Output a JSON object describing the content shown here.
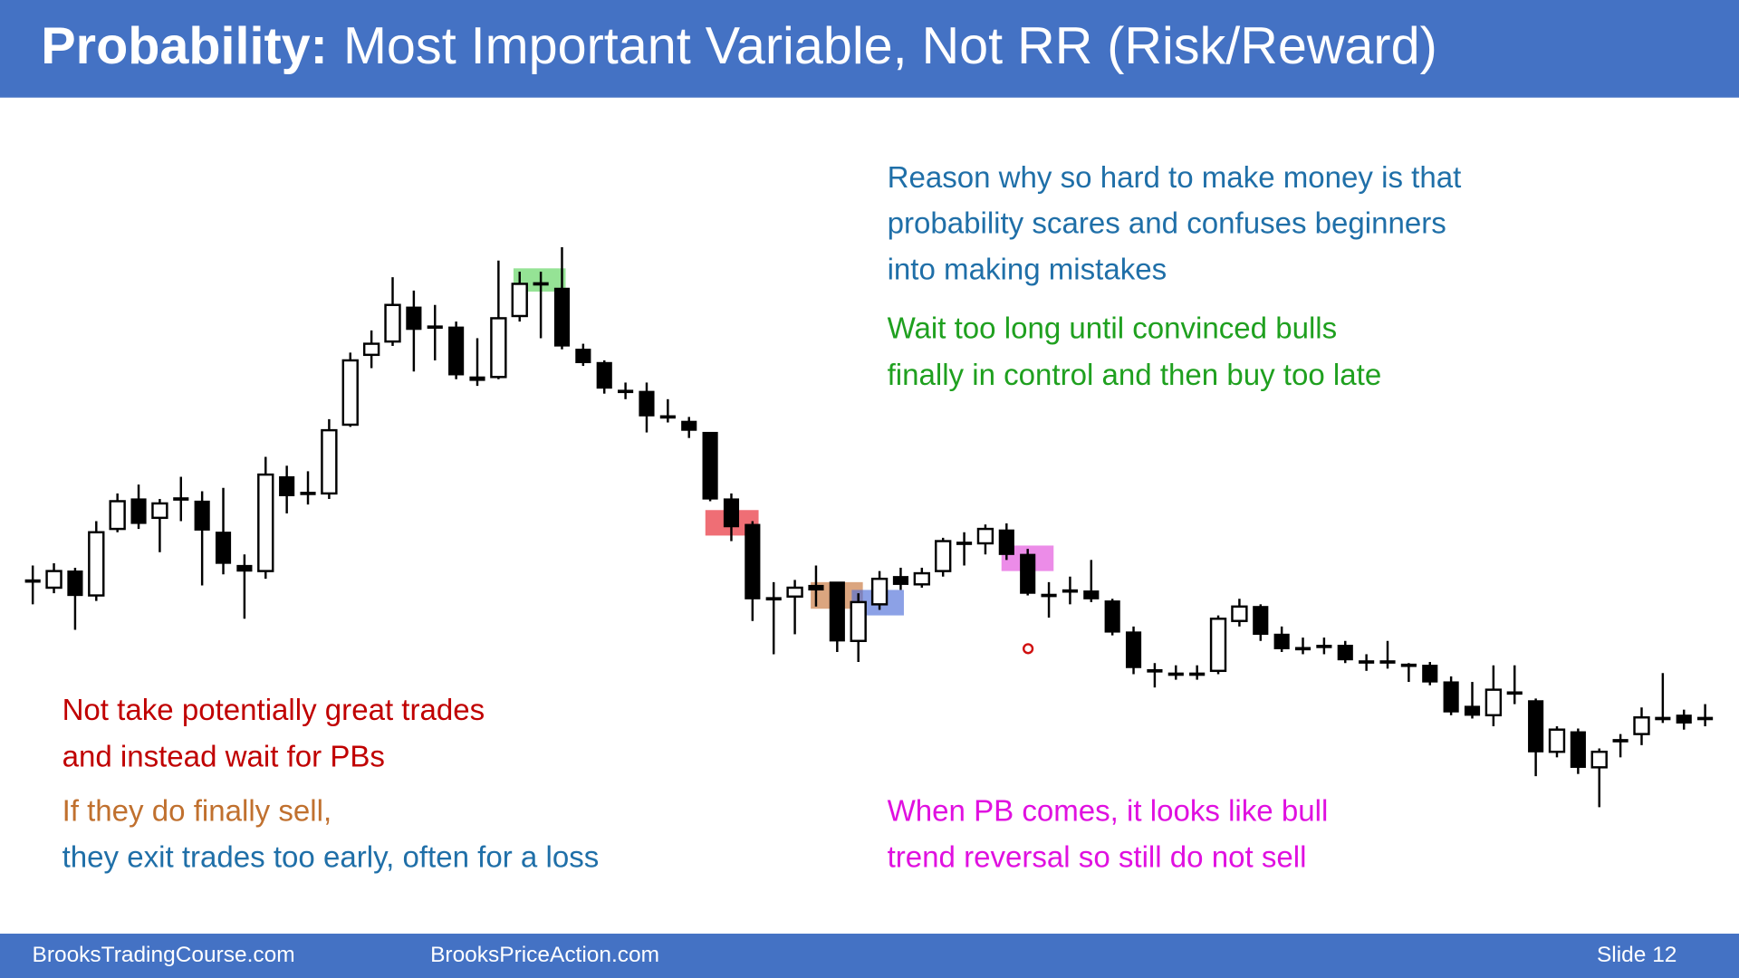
{
  "header": {
    "title_bold": "Probability:",
    "title_rest": "Most Important Variable, Not RR (Risk/Reward)"
  },
  "notes": {
    "reason": [
      "Reason why so hard to make money is that",
      "probability scares and confuses beginners",
      "into making mistakes"
    ],
    "wait": [
      "Wait too long until convinced bulls",
      "finally in control and then buy too late"
    ],
    "not_take": [
      "Not take potentially great trades",
      "and instead wait for PBs"
    ],
    "sell": "If they do finally sell,",
    "exit": "they exit trades too early, often for a loss",
    "pb": [
      "When PB comes, it looks like bull",
      "trend reversal so still do not sell"
    ]
  },
  "footer": {
    "left": "BrooksTradingCourse.com",
    "middle": "BrooksPriceAction.com",
    "slide": "Slide 12"
  },
  "chart_data": {
    "type": "candlestick",
    "ylim": [
      50,
      600
    ],
    "bull_color": "#ffffff",
    "bear_color": "#000000",
    "open": [
      276,
      270,
      285,
      263,
      323,
      350,
      333,
      350,
      348,
      320,
      290,
      285,
      370,
      355,
      355,
      417,
      480,
      492,
      523,
      505,
      505,
      460,
      460,
      515,
      544,
      540,
      485,
      473,
      447,
      447,
      424,
      420,
      410,
      350,
      327,
      260,
      262,
      272,
      275,
      222,
      255,
      280,
      273,
      285,
      310,
      310,
      322,
      300,
      263,
      267,
      267,
      258,
      230,
      195,
      192,
      192,
      195,
      240,
      253,
      228,
      215,
      217,
      218,
      203,
      203,
      200,
      200,
      185,
      163,
      155,
      175,
      168,
      122,
      140,
      108,
      132,
      138,
      152,
      155,
      152
    ],
    "high": [
      290,
      292,
      288,
      330,
      355,
      363,
      350,
      370,
      357,
      360,
      300,
      388,
      380,
      375,
      422,
      482,
      502,
      550,
      538,
      525,
      510,
      495,
      565,
      555,
      555,
      577,
      490,
      475,
      455,
      455,
      440,
      424,
      410,
      355,
      330,
      275,
      277,
      290,
      275,
      265,
      285,
      288,
      288,
      315,
      320,
      327,
      328,
      305,
      275,
      280,
      295,
      260,
      235,
      202,
      200,
      200,
      245,
      260,
      255,
      235,
      225,
      225,
      222,
      210,
      222,
      202,
      203,
      190,
      185,
      200,
      200,
      170,
      145,
      143,
      125,
      138,
      162,
      193,
      160,
      165
    ],
    "low": [
      255,
      265,
      232,
      258,
      320,
      323,
      302,
      330,
      272,
      282,
      242,
      278,
      337,
      345,
      350,
      415,
      468,
      488,
      465,
      475,
      458,
      452,
      458,
      510,
      495,
      485,
      470,
      445,
      440,
      410,
      419,
      405,
      348,
      312,
      240,
      210,
      228,
      253,
      212,
      203,
      250,
      268,
      270,
      280,
      290,
      300,
      295,
      263,
      243,
      255,
      257,
      227,
      192,
      180,
      187,
      187,
      192,
      235,
      222,
      212,
      210,
      210,
      202,
      195,
      197,
      185,
      182,
      155,
      152,
      145,
      165,
      100,
      117,
      102,
      72,
      117,
      128,
      148,
      142,
      145
    ],
    "close": [
      276,
      285,
      263,
      320,
      348,
      328,
      346,
      350,
      322,
      292,
      285,
      372,
      353,
      355,
      412,
      475,
      490,
      525,
      503,
      505,
      462,
      457,
      513,
      544,
      544,
      488,
      473,
      450,
      447,
      425,
      424,
      412,
      350,
      325,
      260,
      260,
      270,
      268,
      222,
      257,
      278,
      273,
      283,
      312,
      310,
      323,
      300,
      265,
      263,
      267,
      260,
      230,
      198,
      195,
      192,
      192,
      242,
      253,
      228,
      215,
      215,
      217,
      205,
      203,
      203,
      198,
      185,
      158,
      155,
      178,
      175,
      122,
      142,
      108,
      122,
      132,
      153,
      152,
      148,
      152
    ]
  }
}
